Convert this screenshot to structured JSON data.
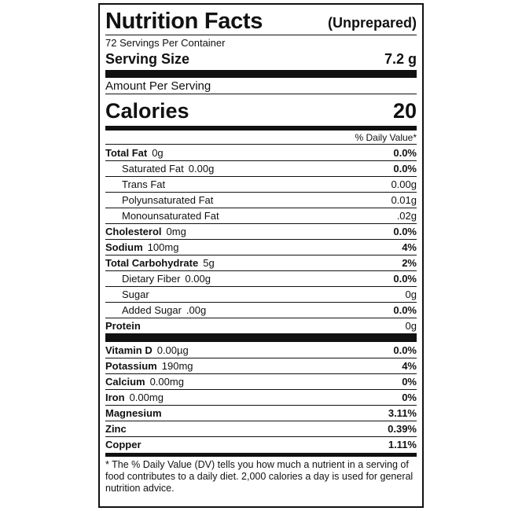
{
  "header": {
    "title": "Nutrition Facts",
    "subtitle": "(Unprepared)",
    "servings": "72 Servings Per Container",
    "serving_size_label": "Serving Size",
    "serving_size": "7.2 g",
    "amount_per_serving": "Amount Per Serving",
    "calories_label": "Calories",
    "calories": "20",
    "dv_header": "% Daily Value*"
  },
  "nutrients": [
    {
      "name": "Total Fat",
      "amount": "0g",
      "dv": "0.0%",
      "sub": [
        {
          "name": "Saturated Fat",
          "amount": "0.00g",
          "dv": "0.0%"
        },
        {
          "name": "Trans Fat",
          "amount": "0.00g"
        },
        {
          "name": "Polyunsaturated Fat",
          "amount": "0.01g"
        },
        {
          "name": "Monounsaturated Fat",
          "amount": ".02g"
        }
      ]
    },
    {
      "name": "Cholesterol",
      "amount": "0mg",
      "dv": "0.0%"
    },
    {
      "name": "Sodium",
      "amount": "100mg",
      "dv": "4%"
    },
    {
      "name": "Total Carbohydrate",
      "amount": "5g",
      "dv": "2%",
      "sub": [
        {
          "name": "Dietary Fiber",
          "amount": "0.00g",
          "dv": "0.0%"
        },
        {
          "name": "Sugar",
          "amount": "0g"
        },
        {
          "name": "Added Sugar",
          "amount": ".00g",
          "dv": "0.0%"
        }
      ]
    },
    {
      "name": "Protein",
      "amount": "0g"
    }
  ],
  "minerals": [
    {
      "name": "Vitamin D",
      "amount": "0.00µg",
      "dv": "0.0%"
    },
    {
      "name": "Potassium",
      "amount": "190mg",
      "dv": "4%"
    },
    {
      "name": "Calcium",
      "amount": "0.00mg",
      "dv": "0%"
    },
    {
      "name": "Iron",
      "amount": "0.00mg",
      "dv": "0%"
    },
    {
      "name": "Magnesium",
      "dv": "3.11%"
    },
    {
      "name": "Zinc",
      "dv": "0.39%"
    },
    {
      "name": "Copper",
      "dv": "1.11%"
    }
  ],
  "footnote": "* The % Daily Value (DV) tells you how much a nutrient in a serving of food contributes to a daily diet. 2,000 calories a day is used for general nutrition advice."
}
